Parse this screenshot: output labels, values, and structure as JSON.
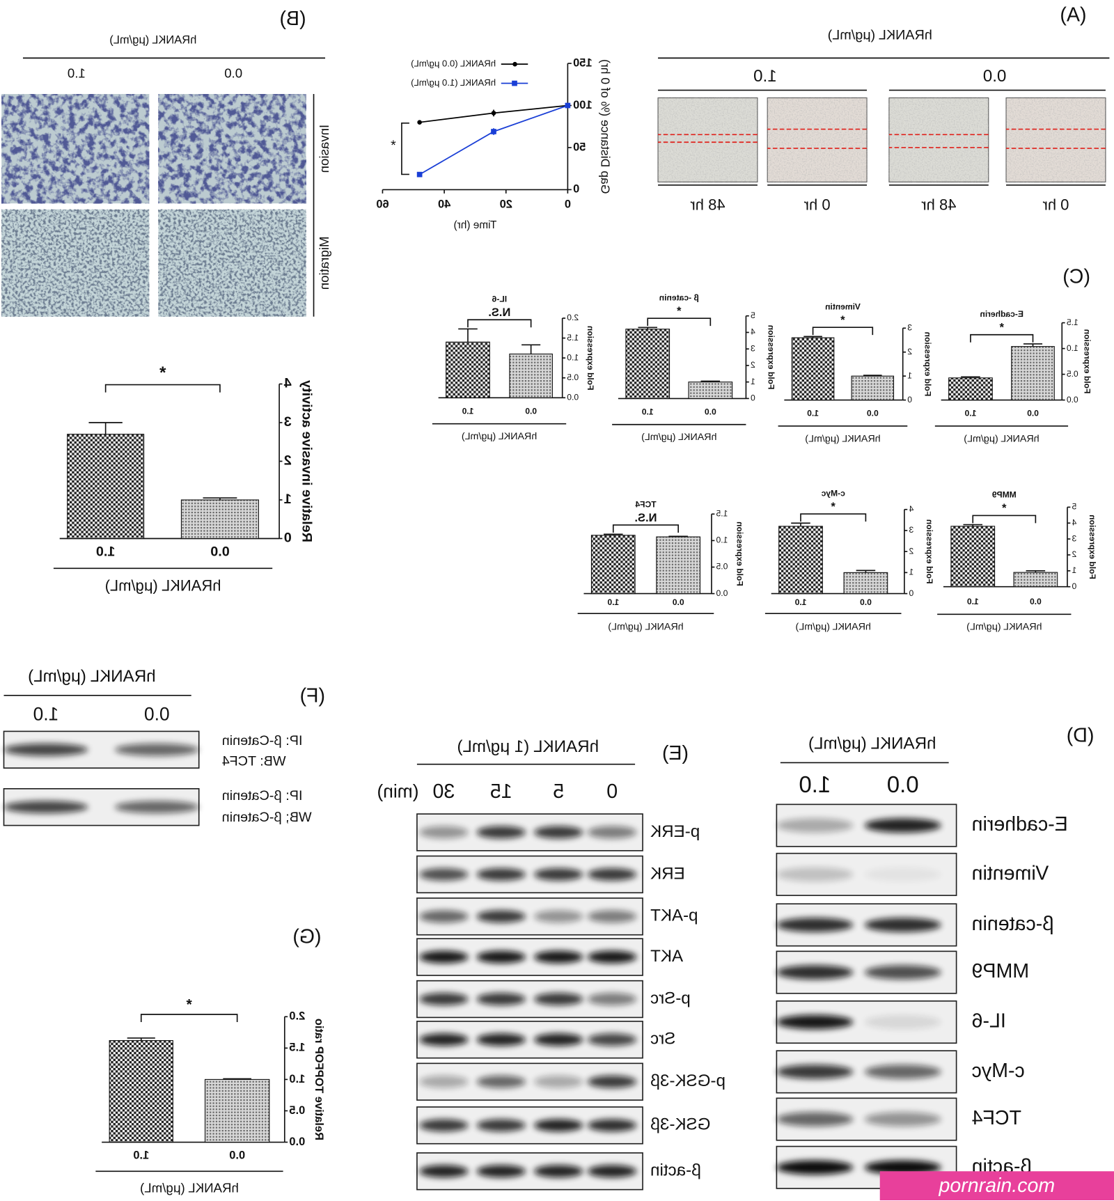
{
  "figure": {
    "A": {
      "label": "(A)",
      "title": "hRANKL (μg/mL)",
      "groups": [
        "0.0",
        "1.0"
      ],
      "times": [
        "0 hr",
        "48 hr",
        "0 hr",
        "48 hr"
      ]
    },
    "B": {
      "label": "(B)",
      "title": "hRANKL (μg/mL)",
      "groups": [
        "0.0",
        "1.0"
      ],
      "rows": [
        "Invasion",
        "Migration"
      ]
    },
    "C": {
      "label": "(C)"
    },
    "D": {
      "label": "(D)",
      "title": "hRANKL (μg/mL)",
      "groups": [
        "0.0",
        "1.0"
      ],
      "rows": [
        "E-cadherin",
        "Vimentin",
        "β-catenin",
        "MMP9",
        "IL-6",
        "c-Myc",
        "TCF4",
        "β-actin"
      ]
    },
    "E": {
      "label": "(E)",
      "title": "hRANKL (1 μg/mL)",
      "times": [
        "0",
        "5",
        "15",
        "30"
      ],
      "unit": "(min)",
      "rows": [
        "p-ERK",
        "ERK",
        "p-AKT",
        "AKT",
        "p-Src",
        "Src",
        "p-GSK-3β",
        "GSK-3β",
        "β-actin"
      ]
    },
    "F": {
      "label": "(F)",
      "title": "hRANKL (μg/mL)",
      "groups": [
        "0.0",
        "1.0"
      ],
      "rows": [
        [
          "IP: β-Catenin",
          "WB: TCF4"
        ],
        [
          "IP: β-Catenin",
          "WB; β-Catenin"
        ]
      ]
    },
    "G": {
      "label": "(G)"
    }
  },
  "chart_data": [
    {
      "type": "line",
      "x_label": "Time (hr)",
      "y_label": "Gap Distance (% of 0 hr)",
      "x": [
        0,
        24,
        48
      ],
      "xlim": [
        0,
        60
      ],
      "xticks": [
        0,
        20,
        40,
        60
      ],
      "ylim": [
        0,
        150
      ],
      "yticks": [
        0,
        50,
        100,
        150
      ],
      "series": [
        {
          "name": "hRANKL (0.0 μg/mL)",
          "color": "#000000",
          "marker": "circle",
          "values": [
            100,
            91,
            80
          ],
          "errors": [
            0,
            4,
            0
          ]
        },
        {
          "name": "hRANKL (1.0 μg/mL)",
          "color": "#1a3fd6",
          "marker": "square",
          "values": [
            100,
            69,
            18
          ],
          "errors": [
            0,
            4,
            2
          ]
        }
      ],
      "annotation": "*"
    },
    {
      "type": "bar",
      "y_label": "Relative invasive activity",
      "x_label": "hRANKL (μg/mL)",
      "categories": [
        "0.0",
        "1.0"
      ],
      "values": [
        1.0,
        2.7
      ],
      "errors": [
        0.05,
        0.3
      ],
      "ylim": [
        0,
        4
      ],
      "yticks": [
        0,
        1,
        2,
        3,
        4
      ],
      "annotation": "*"
    },
    {
      "type": "bar",
      "title": "E-cadherin",
      "y_label": "Fold expression",
      "x_label": "hRANKL (μg/mL)",
      "categories": [
        "0.0",
        "1.0"
      ],
      "values": [
        1.04,
        0.43
      ],
      "errors": [
        0.05,
        0.02
      ],
      "ylim": [
        0,
        1.5
      ],
      "yticks": [
        {
          "value": 0,
          "label": "0.0"
        },
        0.5,
        {
          "value": 1,
          "label": "1.0"
        },
        1.5
      ],
      "annotation": "*"
    },
    {
      "type": "bar",
      "title": "Vimentin",
      "y_label": "Fold expression",
      "x_label": "hRANKL (μg/mL)",
      "categories": [
        "0.0",
        "1.0"
      ],
      "values": [
        1.0,
        2.6
      ],
      "errors": [
        0.03,
        0.05
      ],
      "ylim": [
        0,
        3
      ],
      "yticks": [
        0,
        1,
        2,
        3
      ],
      "annotation": "*"
    },
    {
      "type": "bar",
      "title": "β -catenin",
      "y_label": "Fold expression",
      "x_label": "hRANKL (μg/mL)",
      "categories": [
        "0.0",
        "1.0"
      ],
      "values": [
        1.0,
        4.2
      ],
      "errors": [
        0.05,
        0.1
      ],
      "ylim": [
        0,
        5
      ],
      "yticks": [
        0,
        1,
        2,
        3,
        4,
        5
      ],
      "annotation": "*"
    },
    {
      "type": "bar",
      "title": "IL-6",
      "y_label": "Fold expression",
      "x_label": "hRANKL (μg/mL)",
      "categories": [
        "0.0",
        "1.0"
      ],
      "values": [
        1.1,
        1.4
      ],
      "errors": [
        0.23,
        0.33
      ],
      "ylim": [
        0,
        2
      ],
      "yticks": [
        {
          "value": 0,
          "label": "0.0"
        },
        0.5,
        {
          "value": 1,
          "label": "1.0"
        },
        1.5,
        {
          "value": 2,
          "label": "2.0"
        }
      ],
      "annotation": "N.S."
    },
    {
      "type": "bar",
      "title": "MMP9",
      "y_label": "Fold expression",
      "x_label": "hRANKL (μg/mL)",
      "categories": [
        "0.0",
        "1.0"
      ],
      "values": [
        0.9,
        3.8
      ],
      "errors": [
        0.1,
        0.1
      ],
      "ylim": [
        0,
        5
      ],
      "yticks": [
        0,
        1,
        2,
        3,
        4,
        5
      ],
      "annotation": "*"
    },
    {
      "type": "bar",
      "title": "c-Myc",
      "y_label": "Fold expression",
      "x_label": "hRANKL (μg/mL)",
      "categories": [
        "0.0",
        "1.0"
      ],
      "values": [
        1.0,
        3.2
      ],
      "errors": [
        0.1,
        0.15
      ],
      "ylim": [
        0,
        4
      ],
      "yticks": [
        0,
        1,
        2,
        3,
        4
      ],
      "annotation": "*"
    },
    {
      "type": "bar",
      "title": "TCF4",
      "y_label": "Fold expression",
      "x_label": "hRANKL (μg/mL)",
      "categories": [
        "0.0",
        "1.0"
      ],
      "values": [
        1.07,
        1.1
      ],
      "errors": [
        0.01,
        0.02
      ],
      "ylim": [
        0,
        1.5
      ],
      "yticks": [
        {
          "value": 0,
          "label": "0.0"
        },
        0.5,
        {
          "value": 1,
          "label": "1.0"
        },
        1.5
      ],
      "annotation": "N.S."
    },
    {
      "type": "bar",
      "y_label": "Relative TOPFOP ratio",
      "x_label": "hRANKL (μg/mL)",
      "categories": [
        "0.0",
        "1.0"
      ],
      "values": [
        1.0,
        1.62
      ],
      "errors": [
        0.01,
        0.04
      ],
      "ylim": [
        0,
        2
      ],
      "yticks": [
        {
          "value": 0,
          "label": "0.0"
        },
        0.5,
        {
          "value": 1,
          "label": "1.0"
        },
        1.5,
        {
          "value": 2,
          "label": "2.0"
        }
      ],
      "annotation": "*"
    }
  ],
  "watermark": "pornrain.com"
}
